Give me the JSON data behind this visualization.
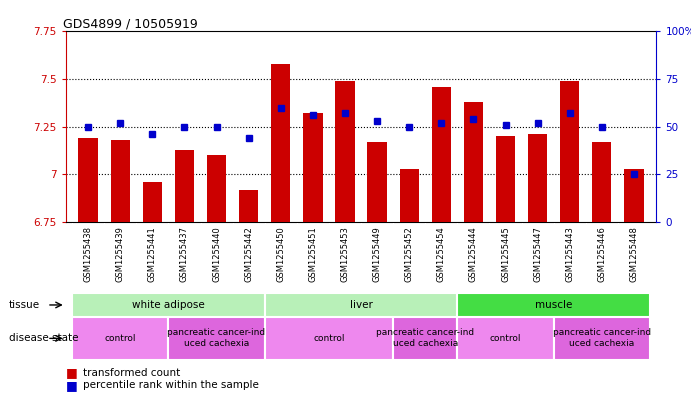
{
  "title": "GDS4899 / 10505919",
  "samples": [
    "GSM1255438",
    "GSM1255439",
    "GSM1255441",
    "GSM1255437",
    "GSM1255440",
    "GSM1255442",
    "GSM1255450",
    "GSM1255451",
    "GSM1255453",
    "GSM1255449",
    "GSM1255452",
    "GSM1255454",
    "GSM1255444",
    "GSM1255445",
    "GSM1255447",
    "GSM1255443",
    "GSM1255446",
    "GSM1255448"
  ],
  "transformed_count": [
    7.19,
    7.18,
    6.96,
    7.13,
    7.1,
    6.92,
    7.58,
    7.32,
    7.49,
    7.17,
    7.03,
    7.46,
    7.38,
    7.2,
    7.21,
    7.49,
    7.17,
    7.03
  ],
  "percentile_rank": [
    50,
    52,
    46,
    50,
    50,
    44,
    60,
    56,
    57,
    53,
    50,
    52,
    54,
    51,
    52,
    57,
    50,
    25
  ],
  "ylim_left": [
    6.75,
    7.75
  ],
  "ylim_right": [
    0,
    100
  ],
  "yticks_left": [
    6.75,
    7.0,
    7.25,
    7.5,
    7.75
  ],
  "yticks_right": [
    0,
    25,
    50,
    75,
    100
  ],
  "ytick_labels_left": [
    "6.75",
    "7",
    "7.25",
    "7.5",
    "7.75"
  ],
  "ytick_labels_right": [
    "0",
    "25",
    "50",
    "75",
    "100%"
  ],
  "bar_color": "#cc0000",
  "dot_color": "#0000cc",
  "xlabels_bg": "#c8c8c8",
  "tissue_groups": [
    {
      "label": "white adipose",
      "start": 0,
      "end": 5,
      "color": "#b8f0b8"
    },
    {
      "label": "liver",
      "start": 6,
      "end": 11,
      "color": "#b8f0b8"
    },
    {
      "label": "muscle",
      "start": 12,
      "end": 17,
      "color": "#44dd44"
    }
  ],
  "disease_groups": [
    {
      "label": "control",
      "start": 0,
      "end": 2,
      "color": "#ee88ee"
    },
    {
      "label": "pancreatic cancer-ind\nuced cachexia",
      "start": 3,
      "end": 5,
      "color": "#dd66dd"
    },
    {
      "label": "control",
      "start": 6,
      "end": 9,
      "color": "#ee88ee"
    },
    {
      "label": "pancreatic cancer-ind\nuced cachexia",
      "start": 10,
      "end": 11,
      "color": "#dd66dd"
    },
    {
      "label": "control",
      "start": 12,
      "end": 14,
      "color": "#ee88ee"
    },
    {
      "label": "pancreatic cancer-ind\nuced cachexia",
      "start": 15,
      "end": 17,
      "color": "#dd66dd"
    }
  ],
  "left_axis_color": "#cc0000",
  "right_axis_color": "#0000cc",
  "dotted_line_vals": [
    7.0,
    7.25,
    7.5
  ],
  "bar_width": 0.6,
  "n_samples": 18
}
